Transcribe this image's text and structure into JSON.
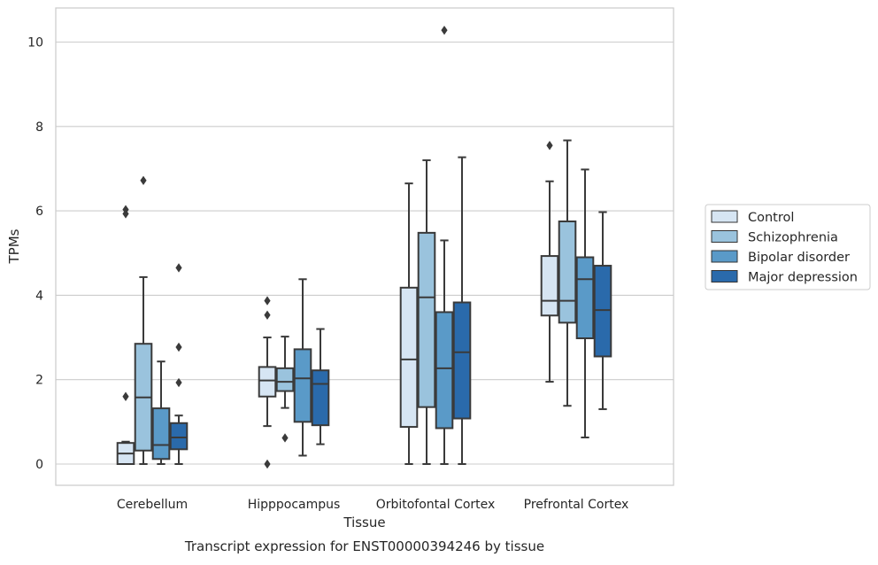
{
  "chart_data": {
    "type": "boxplot",
    "xlabel": "Tissue",
    "ylabel": "TPMs",
    "caption": "Transcript expression for ENST00000394246 by tissue",
    "ylim": [
      -0.5,
      10.8
    ],
    "yticks": [
      0,
      2,
      4,
      6,
      8,
      10
    ],
    "grid": "horizontal",
    "legend_position": "right",
    "categories": [
      "Cerebellum",
      "Hipppocampus",
      "Orbitofontal Cortex",
      "Prefrontal Cortex"
    ],
    "series": [
      {
        "name": "Control",
        "color": "#d6e5f3",
        "boxes": [
          {
            "min": 0.0,
            "q1": 0.0,
            "median": 0.25,
            "q3": 0.5,
            "max": 0.53,
            "outliers": [
              1.6,
              5.93,
              6.03
            ]
          },
          {
            "min": 0.9,
            "q1": 1.6,
            "median": 1.98,
            "q3": 2.3,
            "max": 3.0,
            "outliers": [
              0.0,
              3.53,
              3.87
            ]
          },
          {
            "min": 0.0,
            "q1": 0.88,
            "median": 2.48,
            "q3": 4.18,
            "max": 6.65,
            "outliers": []
          },
          {
            "min": 1.95,
            "q1": 3.52,
            "median": 3.87,
            "q3": 4.93,
            "max": 6.7,
            "outliers": [
              7.55
            ]
          }
        ]
      },
      {
        "name": "Schizophrenia",
        "color": "#9ac3dd",
        "boxes": [
          {
            "min": 0.0,
            "q1": 0.32,
            "median": 1.58,
            "q3": 2.85,
            "max": 4.43,
            "outliers": [
              6.72
            ]
          },
          {
            "min": 1.33,
            "q1": 1.73,
            "median": 1.95,
            "q3": 2.27,
            "max": 3.02,
            "outliers": [
              0.62
            ]
          },
          {
            "min": 0.0,
            "q1": 1.35,
            "median": 3.95,
            "q3": 5.48,
            "max": 7.2,
            "outliers": []
          },
          {
            "min": 1.38,
            "q1": 3.35,
            "median": 3.87,
            "q3": 5.75,
            "max": 7.67,
            "outliers": []
          }
        ]
      },
      {
        "name": "Bipolar disorder",
        "color": "#5a9ac8",
        "boxes": [
          {
            "min": 0.0,
            "q1": 0.12,
            "median": 0.45,
            "q3": 1.32,
            "max": 2.43,
            "outliers": []
          },
          {
            "min": 0.2,
            "q1": 1.0,
            "median": 2.03,
            "q3": 2.72,
            "max": 4.38,
            "outliers": []
          },
          {
            "min": 0.0,
            "q1": 0.85,
            "median": 2.27,
            "q3": 3.6,
            "max": 5.3,
            "outliers": [
              10.28
            ]
          },
          {
            "min": 0.63,
            "q1": 2.98,
            "median": 4.38,
            "q3": 4.9,
            "max": 6.98,
            "outliers": []
          }
        ]
      },
      {
        "name": "Major depression",
        "color": "#2a6aab",
        "boxes": [
          {
            "min": 0.0,
            "q1": 0.35,
            "median": 0.63,
            "q3": 0.97,
            "max": 1.15,
            "outliers": [
              1.93,
              2.77,
              4.65
            ]
          },
          {
            "min": 0.47,
            "q1": 0.92,
            "median": 1.9,
            "q3": 2.22,
            "max": 3.2,
            "outliers": []
          },
          {
            "min": 0.0,
            "q1": 1.08,
            "median": 2.65,
            "q3": 3.83,
            "max": 7.27,
            "outliers": []
          },
          {
            "min": 1.3,
            "q1": 2.55,
            "median": 3.65,
            "q3": 4.7,
            "max": 5.97,
            "outliers": []
          }
        ]
      }
    ]
  }
}
